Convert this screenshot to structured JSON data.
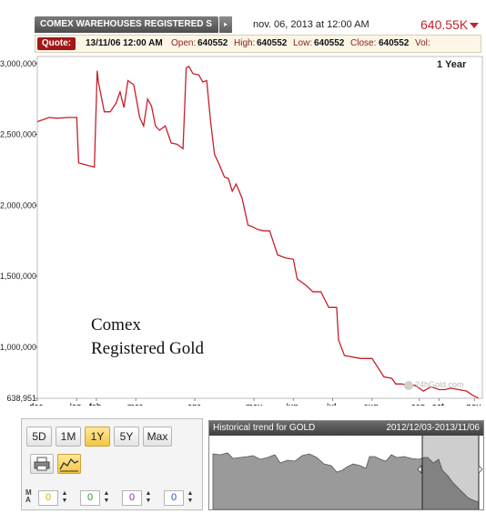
{
  "header": {
    "title": "COMEX WAREHOUSES REGISTERED S",
    "datetime": "nov. 06, 2013 at 12:00 AM",
    "last_value": "640.55K"
  },
  "quote": {
    "label": "Quote:",
    "datetime": "13/11/06 12:00 AM",
    "open_label": "Open:",
    "open": "640552",
    "high_label": "High:",
    "high": "640552",
    "low_label": "Low:",
    "low": "640552",
    "close_label": "Close:",
    "close": "640552",
    "vol_label": "Vol:"
  },
  "range_label": "1 Year",
  "annotation_line1": "Comex",
  "annotation_line2": "Registered Gold",
  "watermark": "24hGold.com",
  "chart_data": {
    "type": "line",
    "ylim": [
      638951,
      3050000
    ],
    "yticks": [
      "638,951",
      "1,000,000",
      "1,500,000",
      "2,000,000",
      "2,500,000",
      "3,000,000"
    ],
    "ytick_values": [
      638951,
      1000000,
      1500000,
      2000000,
      2500000,
      3000000
    ],
    "xtick_labels": [
      "dec.",
      "jan.",
      "feb.",
      "mar.",
      "apr.",
      "may",
      "jun.",
      "jul.",
      "aug.",
      "sep.",
      "oct.",
      "nov."
    ],
    "xtick_months": [
      0,
      1,
      1.5,
      2.5,
      4,
      5.5,
      6.5,
      7.5,
      8.5,
      9.7,
      10.2,
      11.1
    ],
    "color": "#c8202a",
    "x_months": [
      0,
      0.1,
      0.3,
      0.5,
      0.8,
      1.0,
      1.05,
      1.3,
      1.45,
      1.52,
      1.55,
      1.7,
      1.85,
      2.0,
      2.1,
      2.2,
      2.3,
      2.45,
      2.6,
      2.7,
      2.8,
      2.9,
      3.0,
      3.1,
      3.25,
      3.4,
      3.55,
      3.7,
      3.78,
      3.85,
      3.95,
      4.1,
      4.2,
      4.3,
      4.4,
      4.5,
      4.6,
      4.75,
      4.85,
      4.95,
      5.05,
      5.2,
      5.35,
      5.45,
      5.6,
      5.75,
      5.9,
      6.1,
      6.3,
      6.5,
      6.6,
      6.8,
      7.0,
      7.2,
      7.4,
      7.6,
      7.65,
      7.8,
      8.0,
      8.2,
      8.5,
      8.8,
      9.0,
      9.1,
      9.25,
      9.4,
      9.6,
      9.8,
      10.0,
      10.2,
      10.35,
      10.5,
      10.7,
      10.9,
      11.05,
      11.2
    ],
    "y_values": [
      2590000,
      2600000,
      2620000,
      2615000,
      2620000,
      2620000,
      2300000,
      2280000,
      2270000,
      2950000,
      2870000,
      2660000,
      2660000,
      2720000,
      2800000,
      2690000,
      2880000,
      2850000,
      2620000,
      2560000,
      2750000,
      2700000,
      2560000,
      2530000,
      2560000,
      2440000,
      2430000,
      2400000,
      2970000,
      2980000,
      2930000,
      2920000,
      2870000,
      2880000,
      2590000,
      2360000,
      2300000,
      2200000,
      2190000,
      2100000,
      2150000,
      2050000,
      1860000,
      1850000,
      1830000,
      1820000,
      1820000,
      1650000,
      1630000,
      1620000,
      1480000,
      1440000,
      1390000,
      1390000,
      1280000,
      1280000,
      1050000,
      940000,
      930000,
      920000,
      920000,
      790000,
      780000,
      740000,
      740000,
      730000,
      730000,
      690000,
      720000,
      700000,
      700000,
      710000,
      700000,
      690000,
      660000,
      640552
    ]
  },
  "controls": {
    "range_buttons": [
      "5D",
      "1M",
      "1Y",
      "5Y",
      "Max"
    ],
    "active_range": "1Y",
    "ma_label": "MA",
    "ma_values": [
      "0",
      "0",
      "0",
      "0"
    ],
    "ma_colors": [
      "#d4b000",
      "#2a9a2a",
      "#8a2aa8",
      "#2a4ec8"
    ]
  },
  "history": {
    "title": "Historical trend for GOLD",
    "dates": "2012/12/03-2013/11/06"
  }
}
